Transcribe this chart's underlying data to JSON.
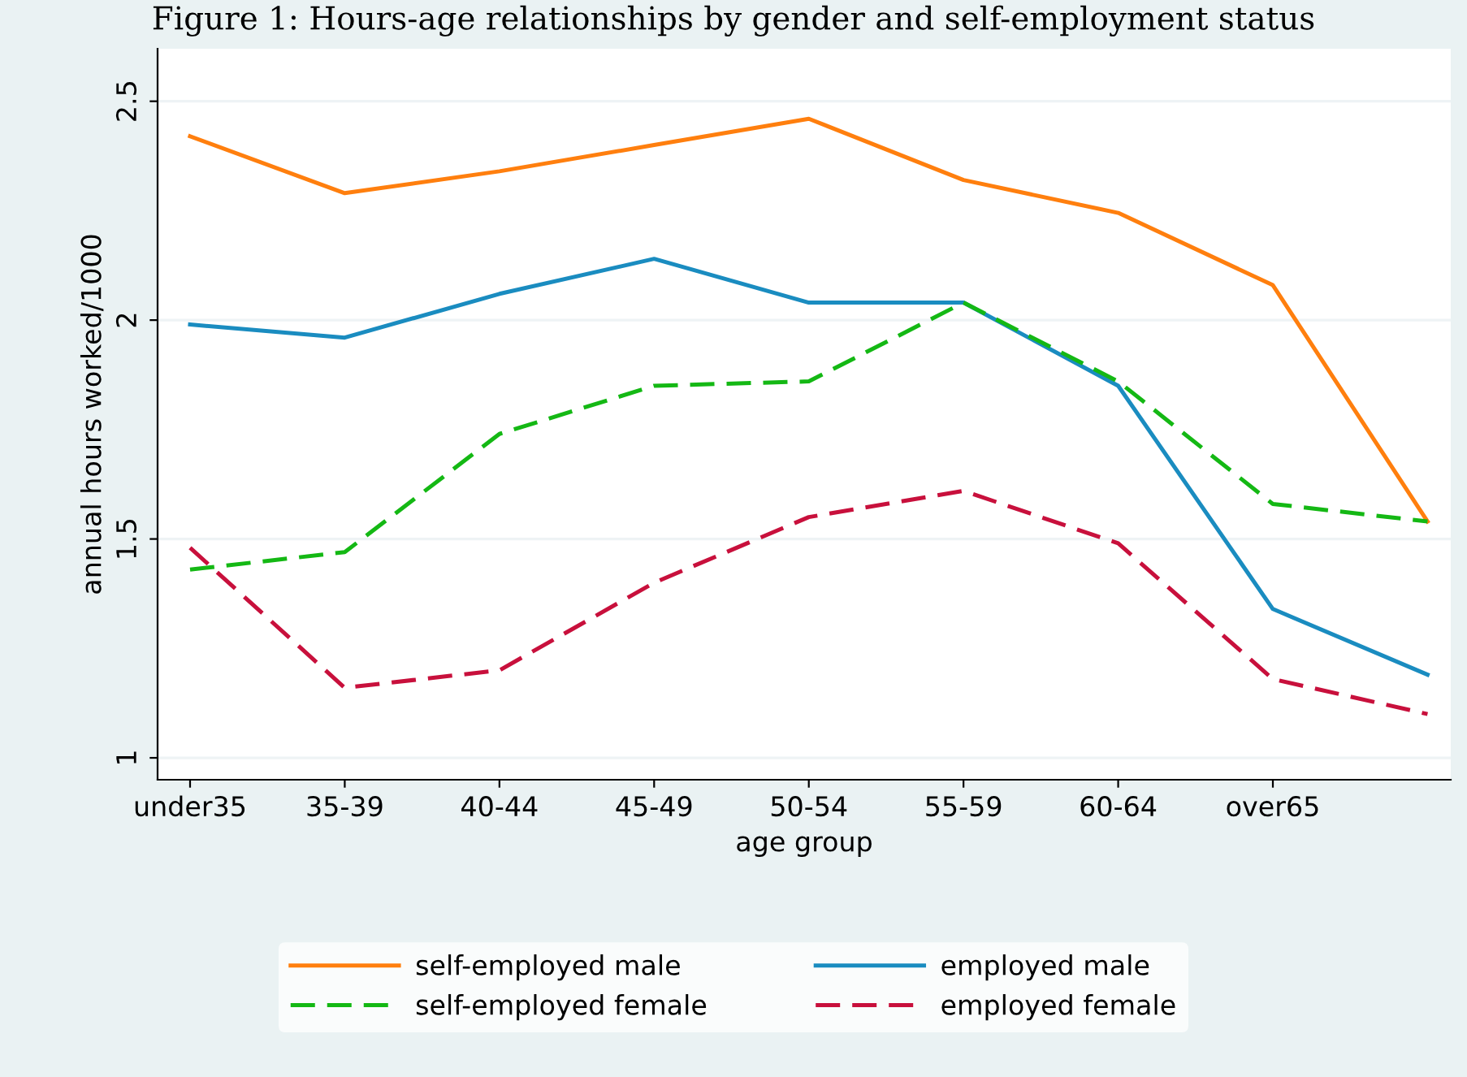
{
  "chart_data": {
    "type": "line",
    "title": "Figure 1: Hours-age relationships by gender and self-employment status",
    "xlabel": "age group",
    "ylabel": "annual hours worked/1000",
    "categories": [
      "under35",
      "35-39",
      "40-44",
      "45-49",
      "50-54",
      "55-59",
      "60-64",
      "over65",
      null
    ],
    "series": [
      {
        "name": "self-employed male",
        "color": "#ff7f0e",
        "line_style": "solid",
        "values": [
          2.42,
          2.29,
          2.34,
          2.4,
          2.46,
          2.32,
          2.245,
          2.08,
          1.54
        ]
      },
      {
        "name": "employed male",
        "color": "#1a8cc0",
        "line_style": "solid",
        "values": [
          1.99,
          1.96,
          2.06,
          2.14,
          2.04,
          2.04,
          1.85,
          1.34,
          1.19
        ]
      },
      {
        "name": "self-employed female",
        "color": "#14b814",
        "line_style": "dashed",
        "values": [
          1.43,
          1.47,
          1.74,
          1.85,
          1.86,
          2.04,
          1.86,
          1.58,
          1.54
        ]
      },
      {
        "name": "employed female",
        "color": "#c8103c",
        "line_style": "dashed",
        "values": [
          1.48,
          1.16,
          1.2,
          1.4,
          1.55,
          1.61,
          1.49,
          1.18,
          1.1
        ]
      }
    ],
    "ylim": [
      0.95,
      2.62
    ],
    "yticks": [
      1,
      1.5,
      2,
      2.5
    ],
    "grid": "y",
    "legend": "bottom",
    "marker": "none"
  }
}
